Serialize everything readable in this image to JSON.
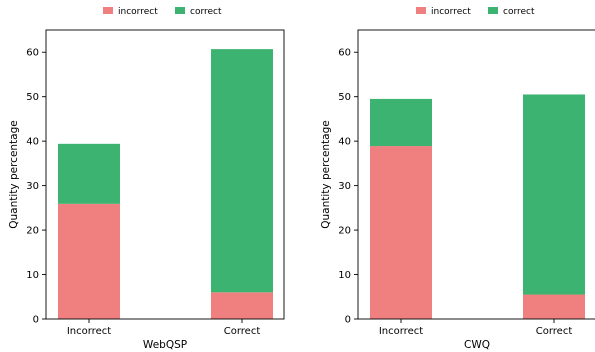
{
  "colors": {
    "incorrect": "#f08080",
    "correct": "#3cb371",
    "axis": "#000000"
  },
  "chart_data": [
    {
      "type": "bar",
      "stacked": true,
      "xlabel": "WebQSP",
      "ylabel": "Quantity percentage",
      "ylim": [
        0,
        65
      ],
      "yticks": [
        0,
        10,
        20,
        30,
        40,
        50,
        60
      ],
      "categories": [
        "Incorrect",
        "Correct"
      ],
      "legend": {
        "position": "top-center",
        "entries": [
          "incorrect",
          "correct"
        ]
      },
      "series": [
        {
          "name": "incorrect",
          "values": [
            25.9,
            6.0
          ]
        },
        {
          "name": "correct",
          "values": [
            13.5,
            54.7
          ]
        }
      ]
    },
    {
      "type": "bar",
      "stacked": true,
      "xlabel": "CWQ",
      "ylabel": "Quantity percentage",
      "ylim": [
        0,
        65
      ],
      "yticks": [
        0,
        10,
        20,
        30,
        40,
        50,
        60
      ],
      "categories": [
        "Incorrect",
        "Correct"
      ],
      "legend": {
        "position": "top-center",
        "entries": [
          "incorrect",
          "correct"
        ]
      },
      "series": [
        {
          "name": "incorrect",
          "values": [
            38.9,
            5.5
          ]
        },
        {
          "name": "correct",
          "values": [
            10.6,
            45.0
          ]
        }
      ]
    }
  ]
}
